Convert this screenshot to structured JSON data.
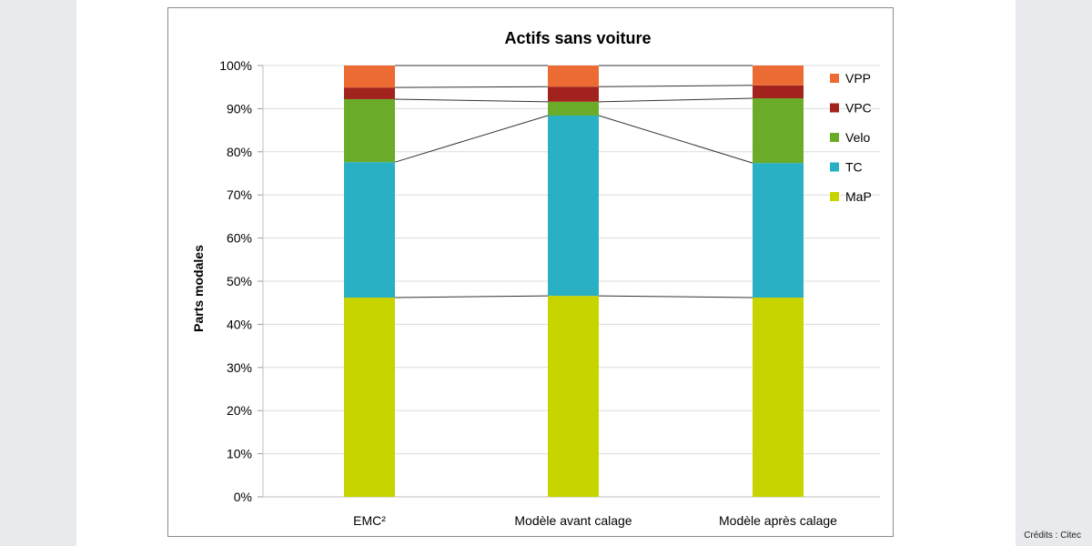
{
  "chart_data": {
    "type": "bar",
    "stacked": true,
    "title": "Actifs sans voiture",
    "xlabel": "",
    "ylabel": "Parts modales",
    "ylim": [
      0,
      100
    ],
    "y_ticks": [
      "0%",
      "10%",
      "20%",
      "30%",
      "40%",
      "50%",
      "60%",
      "70%",
      "80%",
      "90%",
      "100%"
    ],
    "grid": true,
    "legend_position": "right",
    "categories": [
      "EMC²",
      "Modèle avant calage",
      "Modèle après calage"
    ],
    "series": [
      {
        "name": "MaP",
        "color": "#c8d400",
        "values": [
          46.2,
          46.6,
          46.2
        ]
      },
      {
        "name": "TC",
        "color": "#2ab0c5",
        "values": [
          31.4,
          41.8,
          31.2
        ]
      },
      {
        "name": "Velo",
        "color": "#6aac2a",
        "values": [
          14.6,
          3.2,
          15.0
        ]
      },
      {
        "name": "VPC",
        "color": "#a2231e",
        "values": [
          2.7,
          3.5,
          3.0
        ]
      },
      {
        "name": "VPP",
        "color": "#ec6b32",
        "values": [
          5.1,
          4.9,
          4.6
        ]
      }
    ],
    "legend": [
      "VPP",
      "VPC",
      "Velo",
      "TC",
      "MaP"
    ]
  },
  "credits": "Crédits : Citec"
}
